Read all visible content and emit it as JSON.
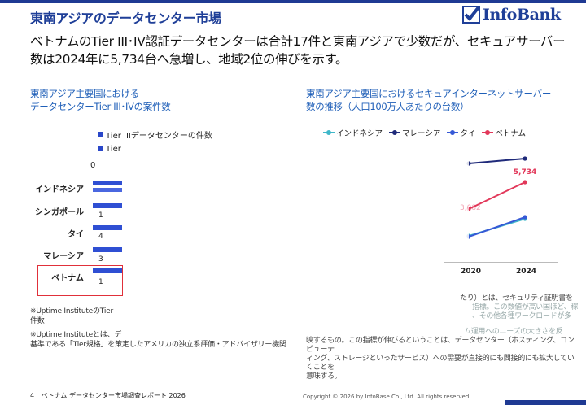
{
  "header": {
    "title": "東南アジアのデータセンター市場",
    "logo_text": "InfoBank"
  },
  "lead_text": "ベトナムのTier III･IV認証データセンターは合計17件と東南アジアで少数だが、セキュアサーバー数は2024年に5,734台へ急増し、地域2位の伸びを示す。",
  "left_panel": {
    "heading_line1": "東南アジア主要国における",
    "heading_line2": "データセンターTier III･IVの案件数",
    "legend": [
      "Tier IIIデータセンターの件数",
      "Tier"
    ],
    "axis_zero": "0",
    "countries": [
      "インドネシア",
      "シンガポール",
      "タイ",
      "マレーシア",
      "ベトナム"
    ],
    "counts": [
      "",
      "1",
      "4",
      "3",
      "1"
    ],
    "note1_line1": "※Uptime InstituteのTier",
    "note1_line2": "件数",
    "note2_line1": "※Uptime Instituteとは、デ",
    "note2_line2": "基準である「Tier規格」を策定したアメリカの独立系評価・アドバイザリー機関"
  },
  "right_panel": {
    "heading_line1": "東南アジア主要国におけるセキュアインターネットサーバー",
    "heading_line2": "数の推移（人口100万人あたりの台数）",
    "note_line1": "たり）とは、セキュリティ証明書を",
    "note_line2": "指標。この数値が高い国ほど、稼",
    "note_line3": "、その他各種ワークロードが多",
    "note_line4": "ム運用へのニーズの大きさを反",
    "note_line5": "映するもの。この指標が伸びるということは、データセンター（ホスティング、コンピューテ",
    "note_line6": "ィング、ストレージといったサービス）への需要が直接的にも間接的にも拡大していくことを",
    "note_line7": "意味する。"
  },
  "chart_data": {
    "type": "line",
    "x": [
      "2020",
      "2024"
    ],
    "series": [
      {
        "name": "インドネシア",
        "color": "#3fb7c9"
      },
      {
        "name": "マレーシア",
        "color": "#1f2a7a"
      },
      {
        "name": "タイ",
        "color": "#3659d6"
      },
      {
        "name": "ベトナム",
        "color": "#e2385a",
        "values": [
          3082,
          5734
        ]
      }
    ],
    "data_labels": [
      "5,734",
      "3,082"
    ]
  },
  "footer": {
    "page_number": "4",
    "report_title": "ベトナム データセンター市場調査レポート 2026",
    "copyright": "Copyright © 2026 by InfoBase Co., Ltd. All rights reserved."
  }
}
